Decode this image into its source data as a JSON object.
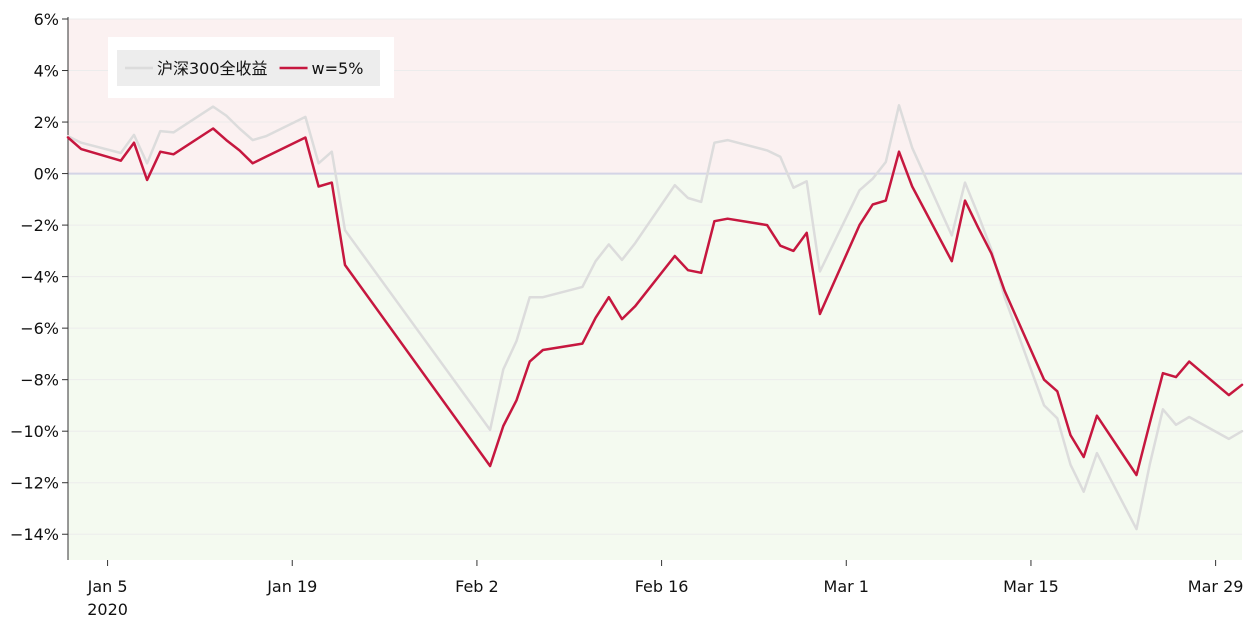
{
  "chart_data": {
    "type": "line",
    "ylim": [
      -15,
      6
    ],
    "xlim": [
      "2020-01-02",
      "2020-03-31"
    ],
    "y_format": "percent",
    "y_ticks": [
      6,
      4,
      2,
      0,
      -2,
      -4,
      -6,
      -8,
      -10,
      -12,
      -14
    ],
    "x_ticks": [
      {
        "date": "2020-01-05",
        "label": "Jan 5",
        "sublabel": "2020"
      },
      {
        "date": "2020-01-19",
        "label": "Jan 19",
        "sublabel": ""
      },
      {
        "date": "2020-02-02",
        "label": "Feb 2",
        "sublabel": ""
      },
      {
        "date": "2020-02-16",
        "label": "Feb 16",
        "sublabel": ""
      },
      {
        "date": "2020-03-01",
        "label": "Mar 1",
        "sublabel": ""
      },
      {
        "date": "2020-03-15",
        "label": "Mar 15",
        "sublabel": ""
      },
      {
        "date": "2020-03-29",
        "label": "Mar 29",
        "sublabel": ""
      }
    ],
    "background_bands": [
      {
        "from": 0,
        "to": 6,
        "color": "#fbf1f1"
      },
      {
        "from": -15,
        "to": 0,
        "color": "#f4faf0"
      }
    ],
    "zero_line_color": "#d4d4e6",
    "legend_position": "top-left",
    "series": [
      {
        "name": "沪深300全收益",
        "color": "#dcdcdc",
        "points": [
          [
            "2020-01-02",
            1.45
          ],
          [
            "2020-01-03",
            1.2
          ],
          [
            "2020-01-06",
            0.8
          ],
          [
            "2020-01-07",
            1.5
          ],
          [
            "2020-01-08",
            0.4
          ],
          [
            "2020-01-09",
            1.65
          ],
          [
            "2020-01-10",
            1.6
          ],
          [
            "2020-01-13",
            2.6
          ],
          [
            "2020-01-14",
            2.25
          ],
          [
            "2020-01-15",
            1.75
          ],
          [
            "2020-01-16",
            1.3
          ],
          [
            "2020-01-17",
            1.45
          ],
          [
            "2020-01-20",
            2.2
          ],
          [
            "2020-01-21",
            0.4
          ],
          [
            "2020-01-22",
            0.85
          ],
          [
            "2020-01-23",
            -2.2
          ],
          [
            "2020-02-03",
            -9.95
          ],
          [
            "2020-02-04",
            -7.6
          ],
          [
            "2020-02-05",
            -6.5
          ],
          [
            "2020-02-06",
            -4.8
          ],
          [
            "2020-02-07",
            -4.8
          ],
          [
            "2020-02-10",
            -4.4
          ],
          [
            "2020-02-11",
            -3.4
          ],
          [
            "2020-02-12",
            -2.75
          ],
          [
            "2020-02-13",
            -3.35
          ],
          [
            "2020-02-14",
            -2.7
          ],
          [
            "2020-02-17",
            -0.45
          ],
          [
            "2020-02-18",
            -0.95
          ],
          [
            "2020-02-19",
            -1.1
          ],
          [
            "2020-02-20",
            1.2
          ],
          [
            "2020-02-21",
            1.3
          ],
          [
            "2020-02-24",
            0.9
          ],
          [
            "2020-02-25",
            0.65
          ],
          [
            "2020-02-26",
            -0.55
          ],
          [
            "2020-02-27",
            -0.3
          ],
          [
            "2020-02-28",
            -3.8
          ],
          [
            "2020-03-02",
            -0.65
          ],
          [
            "2020-03-03",
            -0.2
          ],
          [
            "2020-03-04",
            0.45
          ],
          [
            "2020-03-05",
            2.65
          ],
          [
            "2020-03-06",
            1.0
          ],
          [
            "2020-03-09",
            -2.4
          ],
          [
            "2020-03-10",
            -0.35
          ],
          [
            "2020-03-11",
            -1.6
          ],
          [
            "2020-03-12",
            -2.95
          ],
          [
            "2020-03-13",
            -4.8
          ],
          [
            "2020-03-16",
            -9.0
          ],
          [
            "2020-03-17",
            -9.5
          ],
          [
            "2020-03-18",
            -11.3
          ],
          [
            "2020-03-19",
            -12.35
          ],
          [
            "2020-03-20",
            -10.85
          ],
          [
            "2020-03-23",
            -13.8
          ],
          [
            "2020-03-24",
            -11.3
          ],
          [
            "2020-03-25",
            -9.15
          ],
          [
            "2020-03-26",
            -9.75
          ],
          [
            "2020-03-27",
            -9.45
          ],
          [
            "2020-03-30",
            -10.3
          ],
          [
            "2020-03-31",
            -10.0
          ]
        ]
      },
      {
        "name": "w=5%",
        "color": "#c6173f",
        "points": [
          [
            "2020-01-02",
            1.4
          ],
          [
            "2020-01-03",
            0.95
          ],
          [
            "2020-01-06",
            0.5
          ],
          [
            "2020-01-07",
            1.2
          ],
          [
            "2020-01-08",
            -0.25
          ],
          [
            "2020-01-09",
            0.85
          ],
          [
            "2020-01-10",
            0.75
          ],
          [
            "2020-01-13",
            1.75
          ],
          [
            "2020-01-14",
            1.3
          ],
          [
            "2020-01-15",
            0.9
          ],
          [
            "2020-01-16",
            0.4
          ],
          [
            "2020-01-17",
            0.65
          ],
          [
            "2020-01-20",
            1.4
          ],
          [
            "2020-01-21",
            -0.5
          ],
          [
            "2020-01-22",
            -0.35
          ],
          [
            "2020-01-23",
            -3.55
          ],
          [
            "2020-02-03",
            -11.35
          ],
          [
            "2020-02-04",
            -9.8
          ],
          [
            "2020-02-05",
            -8.8
          ],
          [
            "2020-02-06",
            -7.3
          ],
          [
            "2020-02-07",
            -6.85
          ],
          [
            "2020-02-10",
            -6.6
          ],
          [
            "2020-02-11",
            -5.6
          ],
          [
            "2020-02-12",
            -4.8
          ],
          [
            "2020-02-13",
            -5.65
          ],
          [
            "2020-02-14",
            -5.15
          ],
          [
            "2020-02-17",
            -3.2
          ],
          [
            "2020-02-18",
            -3.75
          ],
          [
            "2020-02-19",
            -3.85
          ],
          [
            "2020-02-20",
            -1.85
          ],
          [
            "2020-02-21",
            -1.75
          ],
          [
            "2020-02-24",
            -2.0
          ],
          [
            "2020-02-25",
            -2.8
          ],
          [
            "2020-02-26",
            -3.0
          ],
          [
            "2020-02-27",
            -2.3
          ],
          [
            "2020-02-28",
            -5.45
          ],
          [
            "2020-03-02",
            -2.0
          ],
          [
            "2020-03-03",
            -1.2
          ],
          [
            "2020-03-04",
            -1.05
          ],
          [
            "2020-03-05",
            0.85
          ],
          [
            "2020-03-06",
            -0.5
          ],
          [
            "2020-03-09",
            -3.4
          ],
          [
            "2020-03-10",
            -1.05
          ],
          [
            "2020-03-11",
            -2.1
          ],
          [
            "2020-03-12",
            -3.1
          ],
          [
            "2020-03-13",
            -4.55
          ],
          [
            "2020-03-16",
            -8.0
          ],
          [
            "2020-03-17",
            -8.45
          ],
          [
            "2020-03-18",
            -10.15
          ],
          [
            "2020-03-19",
            -11.0
          ],
          [
            "2020-03-20",
            -9.4
          ],
          [
            "2020-03-23",
            -11.7
          ],
          [
            "2020-03-24",
            -9.7
          ],
          [
            "2020-03-25",
            -7.75
          ],
          [
            "2020-03-26",
            -7.9
          ],
          [
            "2020-03-27",
            -7.3
          ],
          [
            "2020-03-30",
            -8.6
          ],
          [
            "2020-03-31",
            -8.2
          ]
        ]
      }
    ]
  }
}
